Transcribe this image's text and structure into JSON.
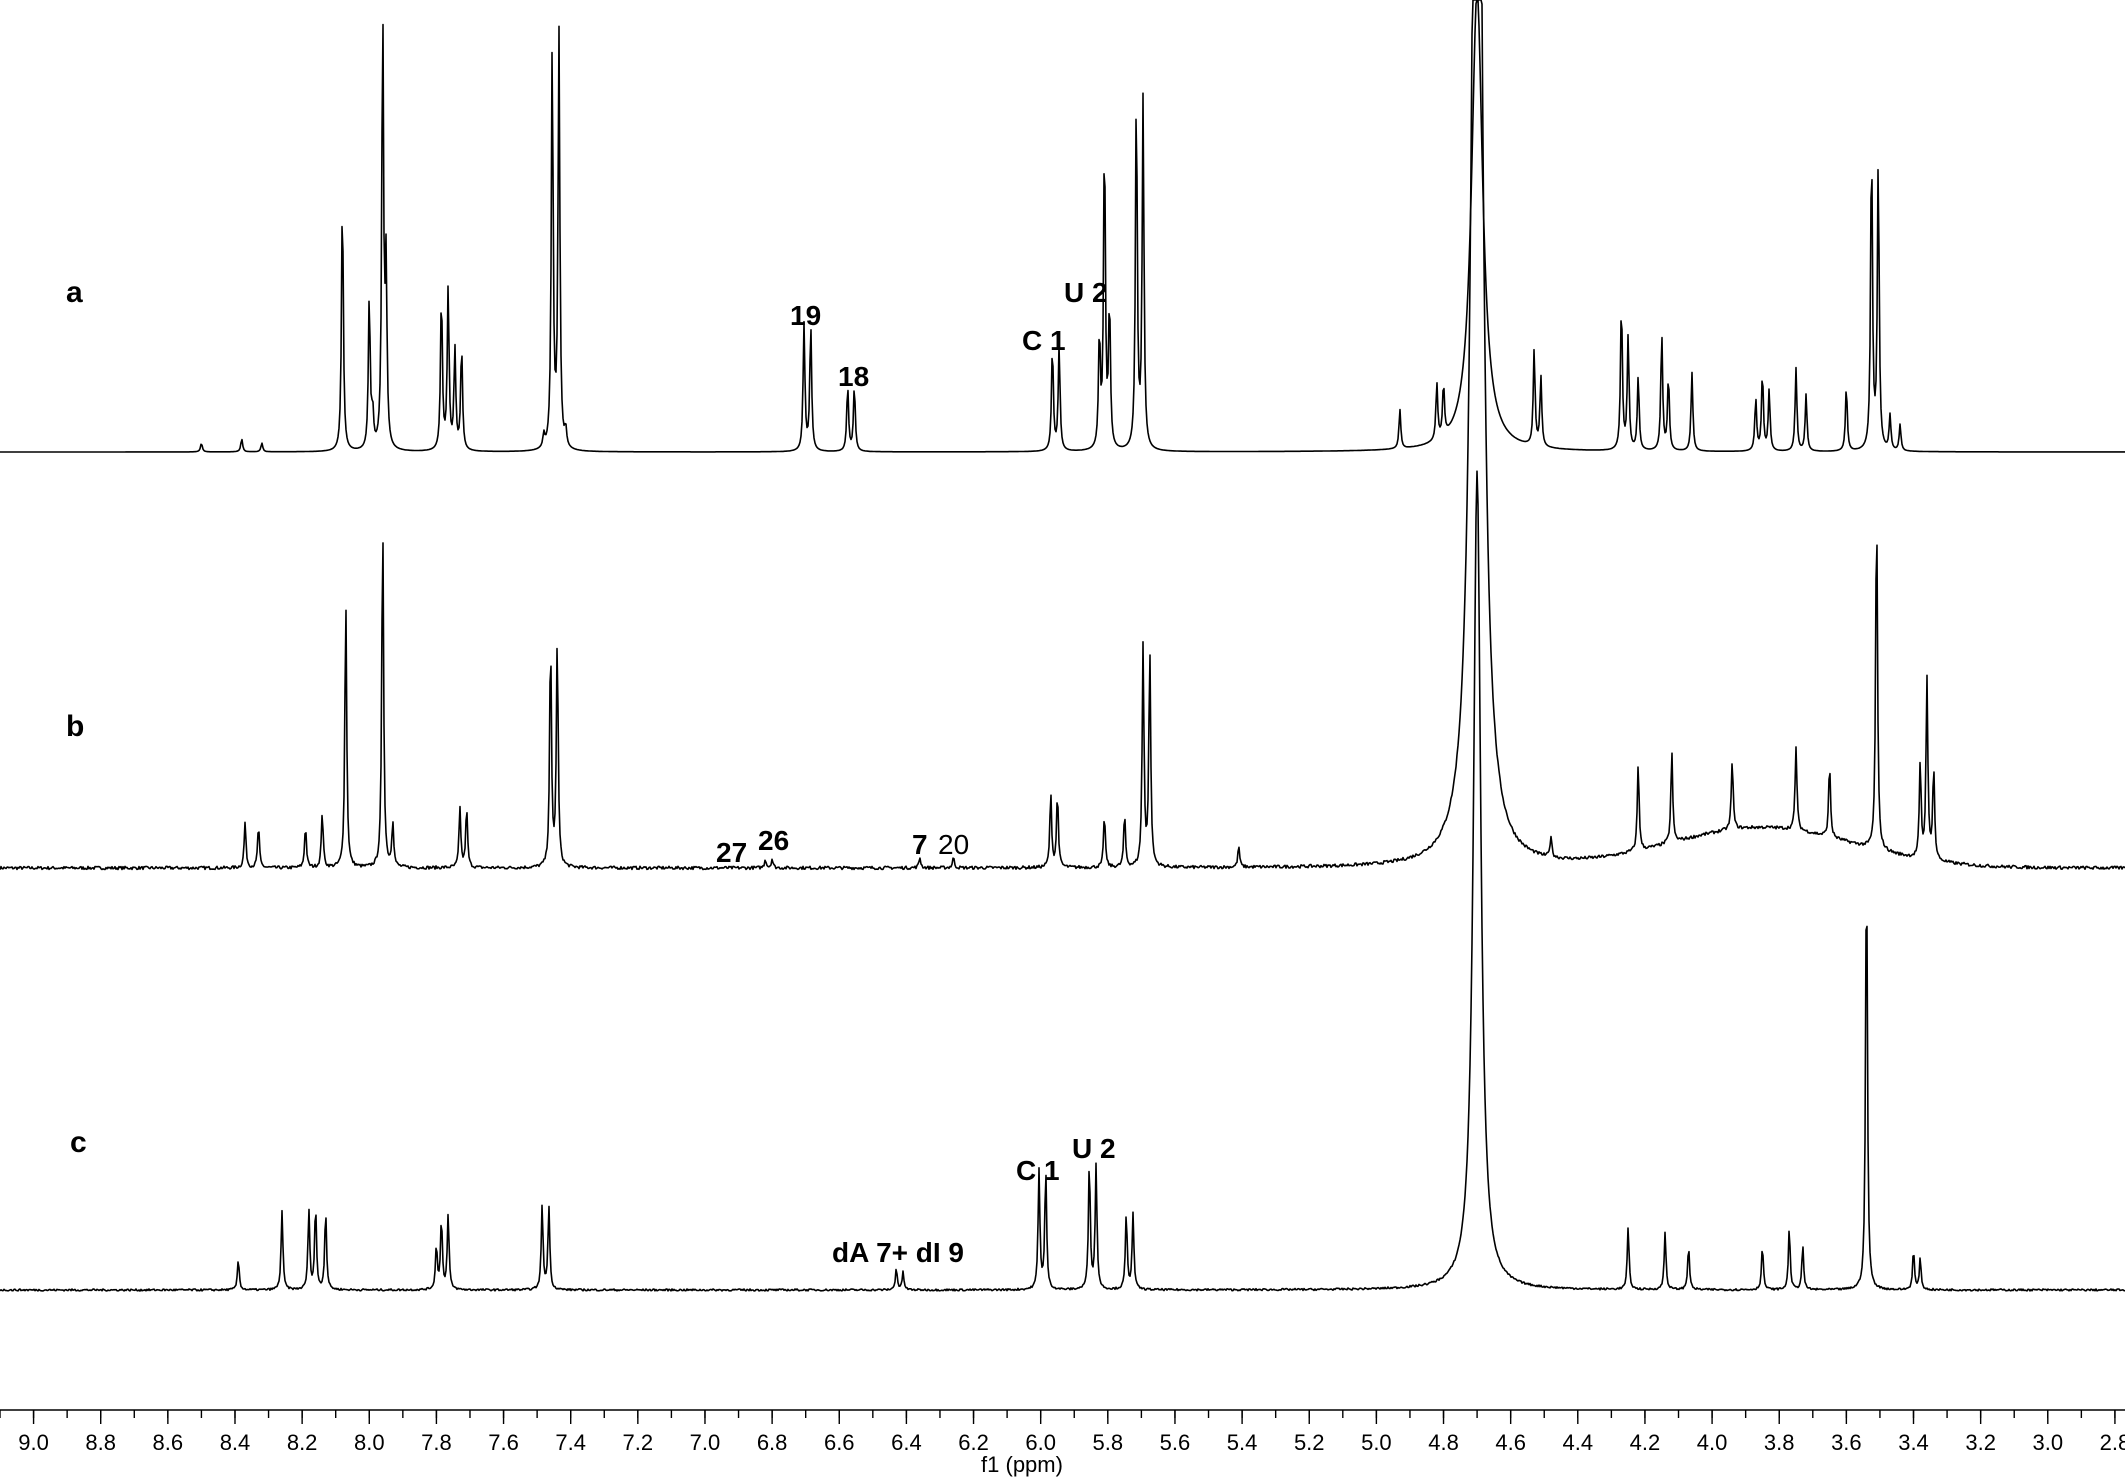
{
  "chart_data": {
    "type": "line",
    "title": "",
    "xlabel": "f1 (ppm)",
    "ylabel": "",
    "x_reversed": true,
    "xlim": [
      9.1,
      2.77
    ],
    "xticks": [
      "9.0",
      "8.8",
      "8.6",
      "8.4",
      "8.2",
      "8.0",
      "7.8",
      "7.6",
      "7.4",
      "7.2",
      "7.0",
      "6.8",
      "6.6",
      "6.4",
      "6.2",
      "6.0",
      "5.8",
      "5.6",
      "5.4",
      "5.2",
      "5.0",
      "4.8",
      "4.6",
      "4.4",
      "4.2",
      "4.0",
      "3.8",
      "3.6",
      "3.4",
      "3.2",
      "3.0",
      "2.8"
    ],
    "grid": false,
    "legend": "none",
    "series": [
      {
        "name": "a",
        "peaks": [
          {
            "ppm": 8.5,
            "height": 0.02
          },
          {
            "ppm": 8.38,
            "height": 0.03
          },
          {
            "ppm": 8.32,
            "height": 0.02
          },
          {
            "ppm": 8.08,
            "height": 0.59
          },
          {
            "ppm": 8.0,
            "height": 0.35
          },
          {
            "ppm": 7.99,
            "height": 0.08
          },
          {
            "ppm": 7.96,
            "height": 1.0
          },
          {
            "ppm": 7.95,
            "height": 0.4
          },
          {
            "ppm": 7.785,
            "height": 0.36
          },
          {
            "ppm": 7.765,
            "height": 0.37
          },
          {
            "ppm": 7.745,
            "height": 0.23
          },
          {
            "ppm": 7.725,
            "height": 0.24
          },
          {
            "ppm": 7.455,
            "height": 0.93
          },
          {
            "ppm": 7.435,
            "height": 0.95
          },
          {
            "ppm": 7.415,
            "height": 0.04
          },
          {
            "ppm": 7.48,
            "height": 0.03
          },
          {
            "ppm": 6.705,
            "height": 0.29
          },
          {
            "ppm": 6.685,
            "height": 0.29
          },
          {
            "ppm": 6.575,
            "height": 0.15
          },
          {
            "ppm": 6.555,
            "height": 0.15
          },
          {
            "ppm": 5.965,
            "height": 0.24
          },
          {
            "ppm": 5.945,
            "height": 0.24
          },
          {
            "ppm": 5.825,
            "height": 0.26
          },
          {
            "ppm": 5.81,
            "height": 0.72
          },
          {
            "ppm": 5.795,
            "height": 0.33
          },
          {
            "ppm": 5.715,
            "height": 0.82
          },
          {
            "ppm": 5.695,
            "height": 0.8
          },
          {
            "ppm": 4.93,
            "height": 0.09
          },
          {
            "ppm": 4.82,
            "height": 0.13
          },
          {
            "ppm": 4.8,
            "height": 0.12
          },
          {
            "ppm": 4.53,
            "height": 0.22
          },
          {
            "ppm": 4.51,
            "height": 0.16
          },
          {
            "ppm": 4.27,
            "height": 0.34
          },
          {
            "ppm": 4.25,
            "height": 0.26
          },
          {
            "ppm": 4.22,
            "height": 0.17
          },
          {
            "ppm": 4.15,
            "height": 0.27
          },
          {
            "ppm": 4.13,
            "height": 0.17
          },
          {
            "ppm": 4.06,
            "height": 0.18
          },
          {
            "ppm": 3.87,
            "height": 0.12
          },
          {
            "ppm": 3.85,
            "height": 0.18
          },
          {
            "ppm": 3.83,
            "height": 0.14
          },
          {
            "ppm": 3.75,
            "height": 0.19
          },
          {
            "ppm": 3.72,
            "height": 0.13
          },
          {
            "ppm": 3.6,
            "height": 0.15
          },
          {
            "ppm": 3.525,
            "height": 0.71
          },
          {
            "ppm": 3.505,
            "height": 0.66
          },
          {
            "ppm": 3.47,
            "height": 0.08
          },
          {
            "ppm": 3.44,
            "height": 0.06
          }
        ]
      },
      {
        "name": "b",
        "peaks": [
          {
            "ppm": 8.37,
            "height": 0.13
          },
          {
            "ppm": 8.33,
            "height": 0.12
          },
          {
            "ppm": 8.19,
            "height": 0.12
          },
          {
            "ppm": 8.14,
            "height": 0.16
          },
          {
            "ppm": 8.07,
            "height": 0.77
          },
          {
            "ppm": 7.96,
            "height": 1.0
          },
          {
            "ppm": 7.93,
            "height": 0.13
          },
          {
            "ppm": 7.73,
            "height": 0.17
          },
          {
            "ppm": 7.71,
            "height": 0.17
          },
          {
            "ppm": 7.46,
            "height": 0.65
          },
          {
            "ppm": 7.44,
            "height": 0.65
          },
          {
            "ppm": 6.82,
            "height": 0.025
          },
          {
            "ppm": 6.8,
            "height": 0.025
          },
          {
            "ppm": 6.36,
            "height": 0.03
          },
          {
            "ppm": 6.26,
            "height": 0.03
          },
          {
            "ppm": 5.97,
            "height": 0.21
          },
          {
            "ppm": 5.95,
            "height": 0.21
          },
          {
            "ppm": 5.81,
            "height": 0.15
          },
          {
            "ppm": 5.75,
            "height": 0.15
          },
          {
            "ppm": 5.695,
            "height": 0.63
          },
          {
            "ppm": 5.675,
            "height": 0.62
          },
          {
            "ppm": 5.41,
            "height": 0.06
          },
          {
            "ppm": 4.48,
            "height": 0.06
          },
          {
            "ppm": 4.22,
            "height": 0.25
          },
          {
            "ppm": 4.12,
            "height": 0.26
          },
          {
            "ppm": 3.94,
            "height": 0.2
          },
          {
            "ppm": 3.75,
            "height": 0.24
          },
          {
            "ppm": 3.65,
            "height": 0.21
          },
          {
            "ppm": 3.51,
            "height": 1.0
          },
          {
            "ppm": 3.38,
            "height": 0.27
          },
          {
            "ppm": 3.36,
            "height": 0.52
          },
          {
            "ppm": 3.34,
            "height": 0.27
          }
        ]
      },
      {
        "name": "c",
        "peaks": [
          {
            "ppm": 8.39,
            "height": 0.07
          },
          {
            "ppm": 8.26,
            "height": 0.18
          },
          {
            "ppm": 8.18,
            "height": 0.18
          },
          {
            "ppm": 8.16,
            "height": 0.19
          },
          {
            "ppm": 8.13,
            "height": 0.18
          },
          {
            "ppm": 7.8,
            "height": 0.1
          },
          {
            "ppm": 7.785,
            "height": 0.16
          },
          {
            "ppm": 7.765,
            "height": 0.17
          },
          {
            "ppm": 7.485,
            "height": 0.19
          },
          {
            "ppm": 7.465,
            "height": 0.19
          },
          {
            "ppm": 6.43,
            "height": 0.05
          },
          {
            "ppm": 6.41,
            "height": 0.04
          },
          {
            "ppm": 6.005,
            "height": 0.27
          },
          {
            "ppm": 5.985,
            "height": 0.27
          },
          {
            "ppm": 5.855,
            "height": 0.29
          },
          {
            "ppm": 5.835,
            "height": 0.28
          },
          {
            "ppm": 5.745,
            "height": 0.17
          },
          {
            "ppm": 5.725,
            "height": 0.17
          },
          {
            "ppm": 4.7,
            "height": 1.0
          },
          {
            "ppm": 4.25,
            "height": 0.14
          },
          {
            "ppm": 4.14,
            "height": 0.13
          },
          {
            "ppm": 4.07,
            "height": 0.1
          },
          {
            "ppm": 3.85,
            "height": 0.1
          },
          {
            "ppm": 3.77,
            "height": 0.14
          },
          {
            "ppm": 3.73,
            "height": 0.1
          },
          {
            "ppm": 3.54,
            "height": 1.0
          },
          {
            "ppm": 3.4,
            "height": 0.09
          },
          {
            "ppm": 3.38,
            "height": 0.07
          }
        ]
      }
    ],
    "annotations": [
      {
        "text": "19",
        "series": "a",
        "ppm": 6.7
      },
      {
        "text": "18",
        "series": "a",
        "ppm": 6.57
      },
      {
        "text": "C 1",
        "series": "a",
        "ppm": 5.95
      },
      {
        "text": "U 2",
        "series": "a",
        "ppm": 5.81
      },
      {
        "text": "27",
        "series": "b",
        "ppm": 6.9
      },
      {
        "text": "26",
        "series": "b",
        "ppm": 6.79
      },
      {
        "text": "7",
        "series": "b",
        "ppm": 6.36
      },
      {
        "text": "20",
        "series": "b",
        "ppm": 6.25
      },
      {
        "text": "dA 7+ dI 9",
        "series": "c",
        "ppm": 6.45
      },
      {
        "text": "C 1",
        "series": "c",
        "ppm": 6.0
      },
      {
        "text": "U 2",
        "series": "c",
        "ppm": 5.84
      }
    ]
  }
}
